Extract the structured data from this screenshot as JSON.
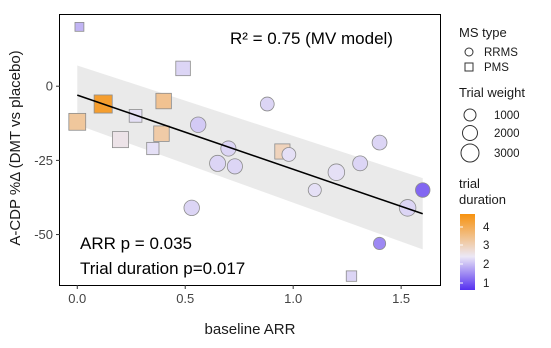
{
  "chart_data": {
    "type": "scatter",
    "xlabel": "baseline ARR",
    "ylabel": "A-CDP %Δ (DMT vs placebo)",
    "xlim": [
      -0.08,
      1.68
    ],
    "ylim": [
      -67,
      24
    ],
    "xticks": [
      "0.0",
      "0.5",
      "1.0",
      "1.5"
    ],
    "yticks": [
      "0",
      "-25",
      "-50"
    ],
    "grid": false,
    "annotations": {
      "r2": "R² = 0.75 (MV model)",
      "arr_p": "ARR p = 0.035",
      "duration_p": "Trial duration p=0.017"
    },
    "regression": {
      "x": [
        0.0,
        1.6
      ],
      "y": [
        -3,
        -43
      ],
      "ci_upper": [
        7,
        -31
      ],
      "ci_lower": [
        -13,
        -55
      ]
    },
    "points": [
      {
        "x": 0.01,
        "y": 20,
        "shape": "PMS",
        "weight": 150,
        "duration": 2.0
      },
      {
        "x": 0.0,
        "y": -12,
        "shape": "PMS",
        "weight": 2100,
        "duration": 3.3
      },
      {
        "x": 0.12,
        "y": -6,
        "shape": "PMS",
        "weight": 2600,
        "duration": 4.3
      },
      {
        "x": 0.2,
        "y": -18,
        "shape": "PMS",
        "weight": 1800,
        "duration": 2.6
      },
      {
        "x": 0.27,
        "y": -10,
        "shape": "PMS",
        "weight": 800,
        "duration": 2.4
      },
      {
        "x": 0.35,
        "y": -21,
        "shape": "PMS",
        "weight": 700,
        "duration": 2.4
      },
      {
        "x": 0.39,
        "y": -16,
        "shape": "PMS",
        "weight": 1600,
        "duration": 3.2
      },
      {
        "x": 0.4,
        "y": -5,
        "shape": "PMS",
        "weight": 1600,
        "duration": 3.4
      },
      {
        "x": 0.49,
        "y": 6,
        "shape": "PMS",
        "weight": 1300,
        "duration": 2.3
      },
      {
        "x": 0.95,
        "y": -22,
        "shape": "PMS",
        "weight": 1500,
        "duration": 3.0
      },
      {
        "x": 1.27,
        "y": -64,
        "shape": "PMS",
        "weight": 350,
        "duration": 2.3
      },
      {
        "x": 0.53,
        "y": -41,
        "shape": "RRMS",
        "weight": 1600,
        "duration": 2.3
      },
      {
        "x": 0.56,
        "y": -13,
        "shape": "RRMS",
        "weight": 1600,
        "duration": 2.2
      },
      {
        "x": 0.65,
        "y": -26,
        "shape": "RRMS",
        "weight": 1800,
        "duration": 2.3
      },
      {
        "x": 0.7,
        "y": -21,
        "shape": "RRMS",
        "weight": 1500,
        "duration": 2.3
      },
      {
        "x": 0.73,
        "y": -27,
        "shape": "RRMS",
        "weight": 1500,
        "duration": 2.3
      },
      {
        "x": 0.88,
        "y": -6,
        "shape": "RRMS",
        "weight": 1100,
        "duration": 2.3
      },
      {
        "x": 0.98,
        "y": -23,
        "shape": "RRMS",
        "weight": 1100,
        "duration": 2.4
      },
      {
        "x": 1.1,
        "y": -35,
        "shape": "RRMS",
        "weight": 900,
        "duration": 2.4
      },
      {
        "x": 1.2,
        "y": -29,
        "shape": "RRMS",
        "weight": 2000,
        "duration": 2.4
      },
      {
        "x": 1.31,
        "y": -26,
        "shape": "RRMS",
        "weight": 1400,
        "duration": 2.3
      },
      {
        "x": 1.4,
        "y": -19,
        "shape": "RRMS",
        "weight": 1400,
        "duration": 2.3
      },
      {
        "x": 1.4,
        "y": -53,
        "shape": "RRMS",
        "weight": 700,
        "duration": 1.6
      },
      {
        "x": 1.53,
        "y": -41,
        "shape": "RRMS",
        "weight": 2000,
        "duration": 2.3
      },
      {
        "x": 1.6,
        "y": -35,
        "shape": "RRMS",
        "weight": 1300,
        "duration": 1.3
      }
    ],
    "legend": {
      "shape_title": "MS type",
      "shape_items": [
        "RRMS",
        "PMS"
      ],
      "size_title": "Trial weight",
      "size_items": [
        "1000",
        "2000",
        "3000"
      ],
      "color_title_line1": "trial",
      "color_title_line2": "duration",
      "color_ticks": [
        "4",
        "3",
        "2",
        "1"
      ],
      "colors": {
        "low": "#5530f0",
        "mid": "#ece8f6",
        "high": "#f7920e"
      }
    }
  }
}
